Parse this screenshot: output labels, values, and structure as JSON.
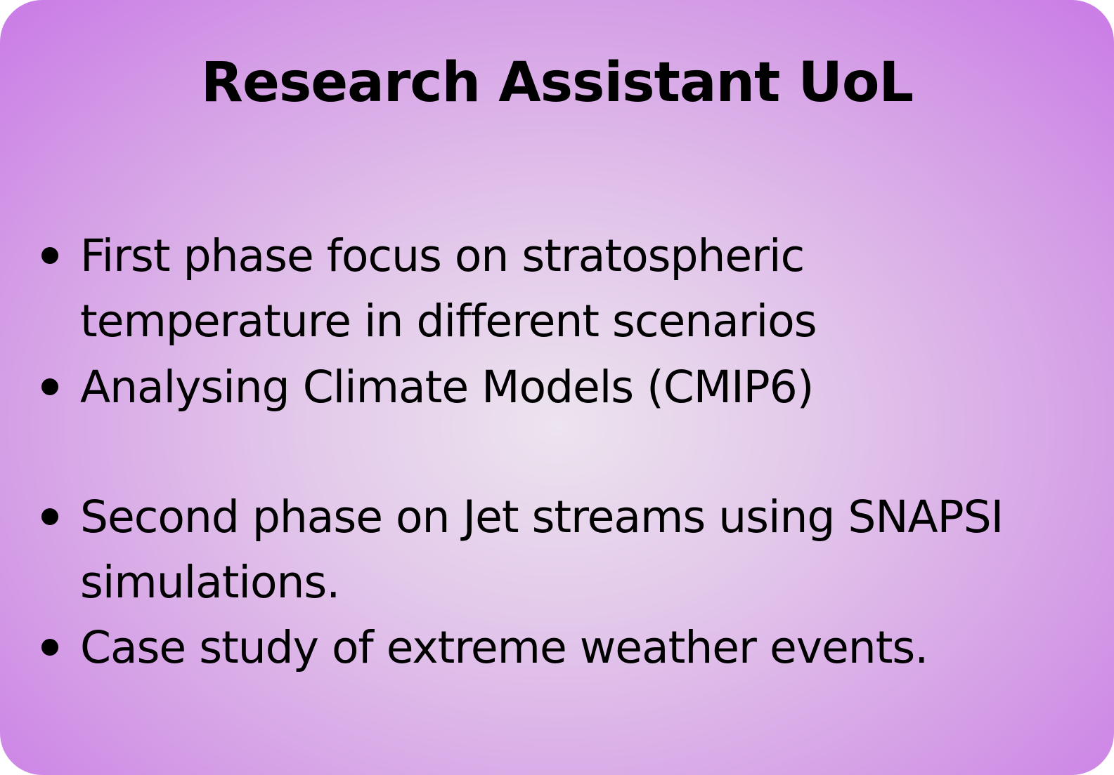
{
  "card": {
    "background_center": "#ece4ee",
    "background_edge": "#c97ae6",
    "title": "Research Assistant UoL",
    "bullets": [
      {
        "line1": "First phase focus on stratospheric",
        "line2": "temperature in different scenarios"
      },
      {
        "line1": "Analysing Climate Models (CMIP6)",
        "line2": ""
      },
      {
        "line1": "Second phase on Jet streams using SNAPSI",
        "line2": "simulations."
      },
      {
        "line1": "Case study of extreme weather events.",
        "line2": ""
      }
    ]
  }
}
